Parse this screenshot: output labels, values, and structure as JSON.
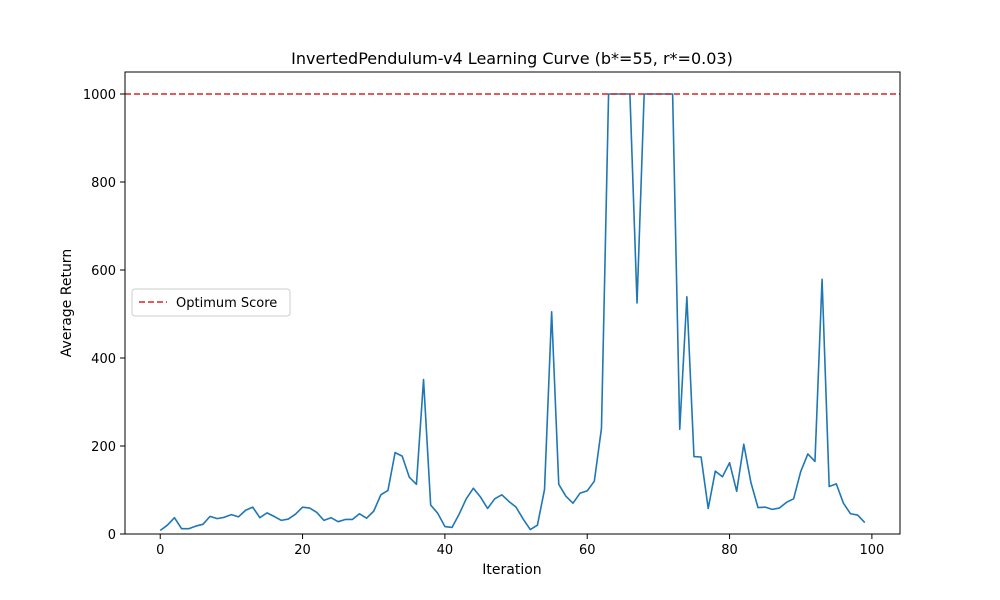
{
  "chart_data": {
    "type": "line",
    "title": "InvertedPendulum-v4 Learning Curve (b*=55, r*=0.03)",
    "xlabel": "Iteration",
    "ylabel": "Average Return",
    "xlim": [
      -4.95,
      103.95
    ],
    "ylim": [
      0,
      1050
    ],
    "xticks": [
      0,
      20,
      40,
      60,
      80,
      100
    ],
    "yticks": [
      0,
      200,
      400,
      600,
      800,
      1000
    ],
    "grid": false,
    "legend_position": "center-left",
    "series": [
      {
        "color": "#1f77b4",
        "x": [
          0,
          1,
          2,
          3,
          4,
          5,
          6,
          7,
          8,
          9,
          10,
          11,
          12,
          13,
          14,
          15,
          16,
          17,
          18,
          19,
          20,
          21,
          22,
          23,
          24,
          25,
          26,
          27,
          28,
          29,
          30,
          31,
          32,
          33,
          34,
          35,
          36,
          37,
          38,
          39,
          40,
          41,
          42,
          43,
          44,
          45,
          46,
          47,
          48,
          49,
          50,
          51,
          52,
          53,
          54,
          55,
          56,
          57,
          58,
          59,
          60,
          61,
          62,
          63,
          64,
          65,
          66,
          67,
          68,
          69,
          70,
          71,
          72,
          73,
          74,
          75,
          76,
          77,
          78,
          79,
          80,
          81,
          82,
          83,
          84,
          85,
          86,
          87,
          88,
          89,
          90,
          91,
          92,
          93,
          94,
          95,
          96,
          97,
          98,
          99
        ],
        "y": [
          8,
          20,
          37,
          12,
          12,
          18,
          22,
          40,
          35,
          38,
          44,
          39,
          54,
          61,
          37,
          48,
          40,
          31,
          34,
          45,
          61,
          59,
          49,
          31,
          37,
          28,
          33,
          33,
          46,
          36,
          52,
          89,
          99,
          185,
          177,
          129,
          113,
          351,
          66,
          47,
          17,
          15,
          45,
          80,
          104,
          84,
          58,
          80,
          89,
          74,
          61,
          34,
          10,
          20,
          101,
          505,
          113,
          86,
          70,
          93,
          98,
          120,
          240,
          1000,
          1000,
          1000,
          1000,
          525,
          1000,
          1000,
          1000,
          1000,
          1000,
          238,
          539,
          176,
          175,
          58,
          143,
          130,
          162,
          97,
          204,
          117,
          60,
          61,
          56,
          59,
          72,
          80,
          142,
          182,
          165,
          579,
          108,
          114,
          70,
          46,
          43,
          26
        ]
      },
      {
        "name": "Optimum Score",
        "color": "#d62728",
        "style": "dashed",
        "y_constant": 1000
      }
    ]
  }
}
